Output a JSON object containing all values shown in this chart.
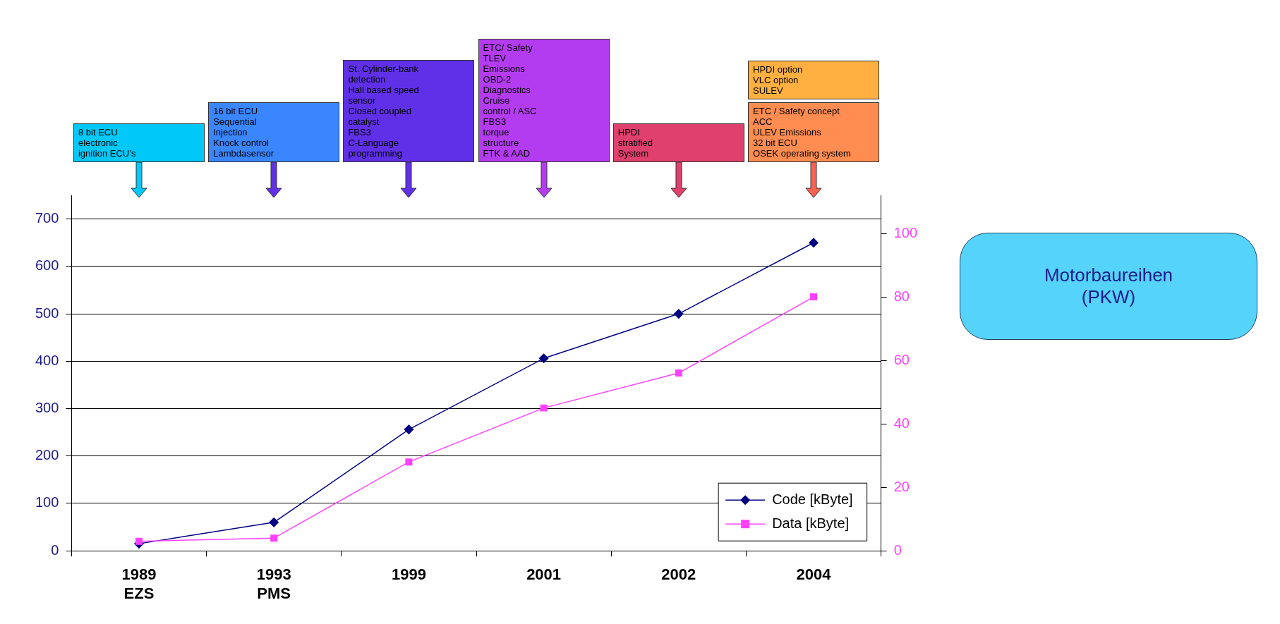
{
  "chart_data": {
    "type": "line",
    "title": "Motorbaureihen\n(PKW)",
    "categories": [
      "1989\nEZS",
      "1993\nPMS",
      "1999",
      "2001",
      "2002",
      "2004"
    ],
    "series": [
      {
        "name": "Code [kByte]",
        "color": "#000080",
        "marker": "diamond",
        "values": [
          15,
          60,
          256,
          406,
          500,
          650
        ]
      },
      {
        "name": "Data [kByte]",
        "color": "#ff40ff",
        "marker": "square",
        "axis": "y2",
        "values": [
          3,
          4,
          28,
          45,
          56,
          80
        ]
      }
    ],
    "ylim": [
      0,
      750
    ],
    "yticks": [
      0,
      100,
      200,
      300,
      400,
      500,
      600,
      700
    ],
    "y2lim": [
      0,
      112
    ],
    "y2ticks": [
      0,
      20,
      40,
      60,
      80,
      100
    ],
    "grid": "y",
    "legend": "bottom right",
    "line_style": "solid",
    "annotations": [
      "8 bit ECU\nelectronic\nignition ECU’s",
      "16 bit ECU\nSequential\nInjection\nKnock control\nLambdasensor",
      "St. Cylinder-bank\ndetection\nHall based speed\nsensor\nClosed coupled\ncatalyst\nFBS3\nC-Language\nprogramming",
      "ETC/ Safety\nTLEV\nEmissions\nOBD-2\nDiagnostics\nCruise\ncontrol / ASC\nFBS3\ntorque\nstructure\nFTK & AAD",
      "HPDI\nstratified\nSystem",
      "ETC / Safety concept\nACC\nULEV Emissions\n32 bit ECU\nOSEK operating system",
      "HPDI option\nVLC option\nSULEV"
    ]
  }
}
